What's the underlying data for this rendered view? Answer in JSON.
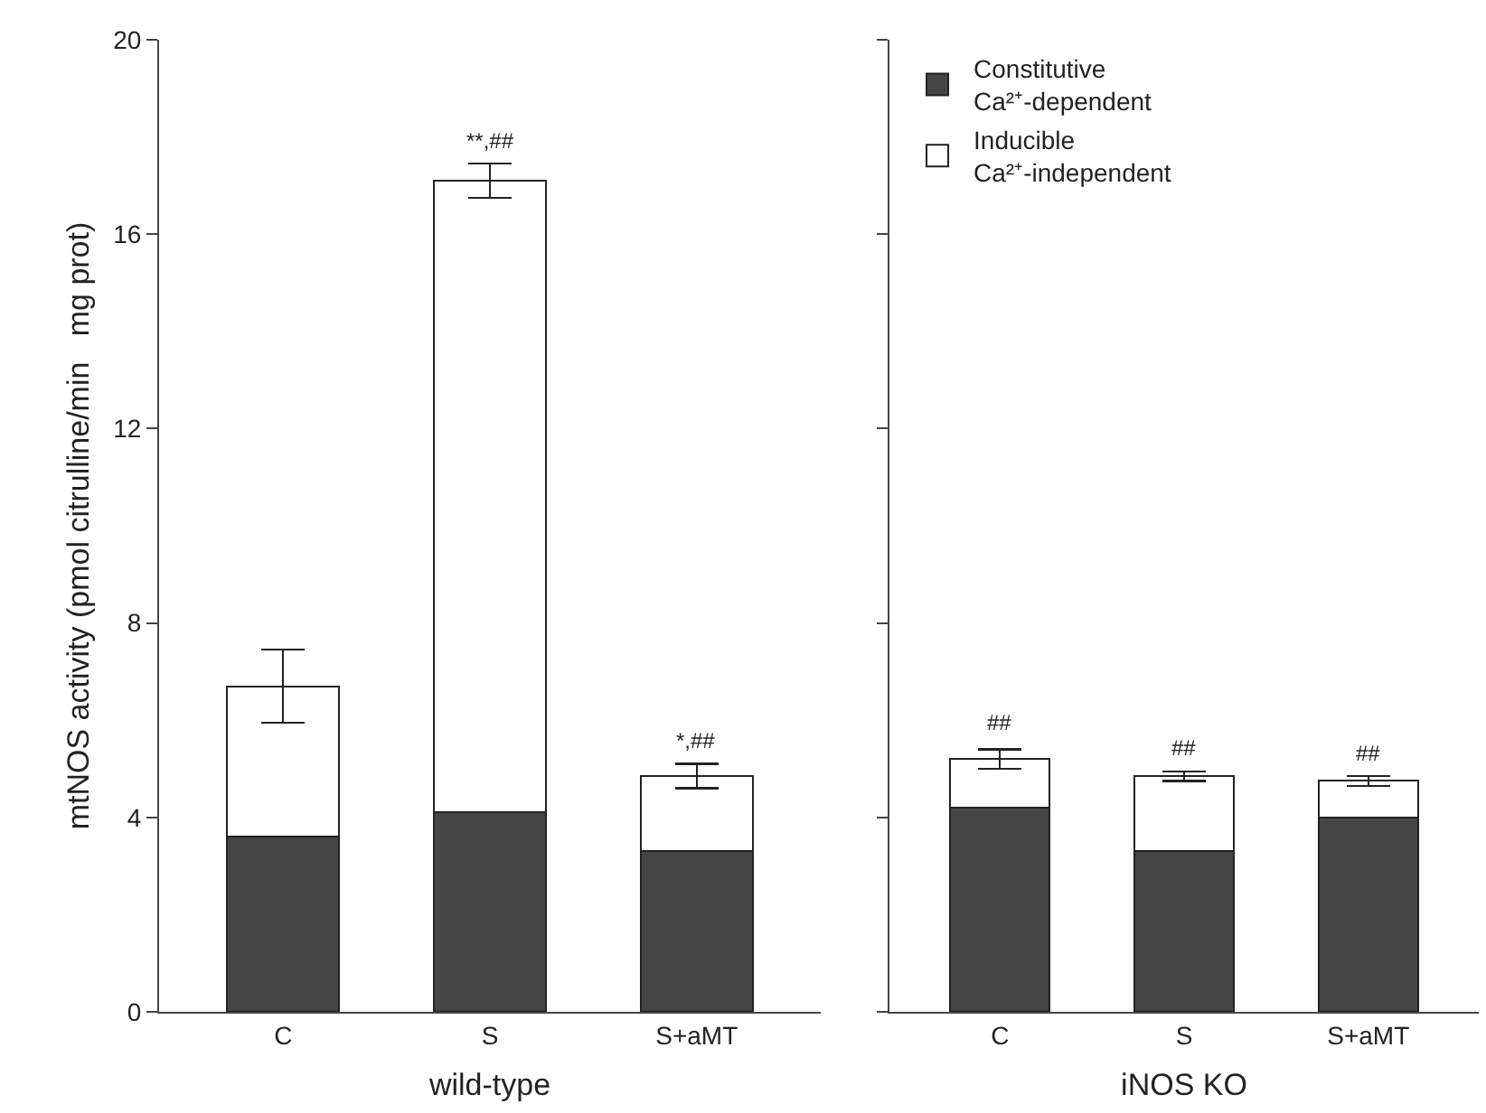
{
  "chart_data": [
    {
      "type": "bar",
      "stacked": true,
      "xlabel": "wild-type",
      "ylabel": "mtNOS activity (pmol citrulline/min   mg prot)",
      "categories": [
        "C",
        "S",
        "S+aMT"
      ],
      "ylim": [
        0,
        20
      ],
      "yticks": [
        0,
        4,
        8,
        12,
        16,
        20
      ],
      "grid": false,
      "legend": false,
      "series": [
        {
          "color": "#454545",
          "values": [
            3.6,
            4.1,
            3.3
          ]
        },
        {
          "color": "#ffffff",
          "values": [
            3.1,
            13.0,
            1.55
          ],
          "errors": [
            0.75,
            0.35,
            0.25
          ]
        }
      ],
      "annotations": [
        {
          "text": "**,##",
          "x": "S",
          "y": 17.45
        },
        {
          "text": "*,##",
          "x": "S+aMT",
          "y": 5.1
        }
      ]
    },
    {
      "type": "bar",
      "stacked": true,
      "xlabel": "iNOS KO",
      "categories": [
        "C",
        "S",
        "S+aMT"
      ],
      "ylim": [
        0,
        20
      ],
      "yticks": [
        {
          "value": 0,
          "label": null
        },
        {
          "value": 4,
          "label": null
        },
        {
          "value": 8,
          "label": null
        },
        {
          "value": 12,
          "label": null
        },
        {
          "value": 16,
          "label": null
        },
        {
          "value": 20,
          "label": null
        }
      ],
      "tick_labels": "x",
      "grid": false,
      "legend": "top left",
      "series": [
        {
          "name": "Constitutive\nCa²⁺-dependent",
          "color": "#454545",
          "values": [
            4.2,
            3.3,
            4.0
          ]
        },
        {
          "name": "Inducible\nCa²⁺-independent",
          "color": "#ffffff",
          "values": [
            1.0,
            1.55,
            0.75
          ],
          "errors": [
            0.2,
            0.1,
            0.1
          ]
        }
      ],
      "annotations": [
        {
          "text": "##",
          "x": "C",
          "y": 5.45
        },
        {
          "text": "##",
          "x": "S",
          "y": 4.95
        },
        {
          "text": "##",
          "x": "S+aMT",
          "y": 4.85
        }
      ]
    }
  ]
}
